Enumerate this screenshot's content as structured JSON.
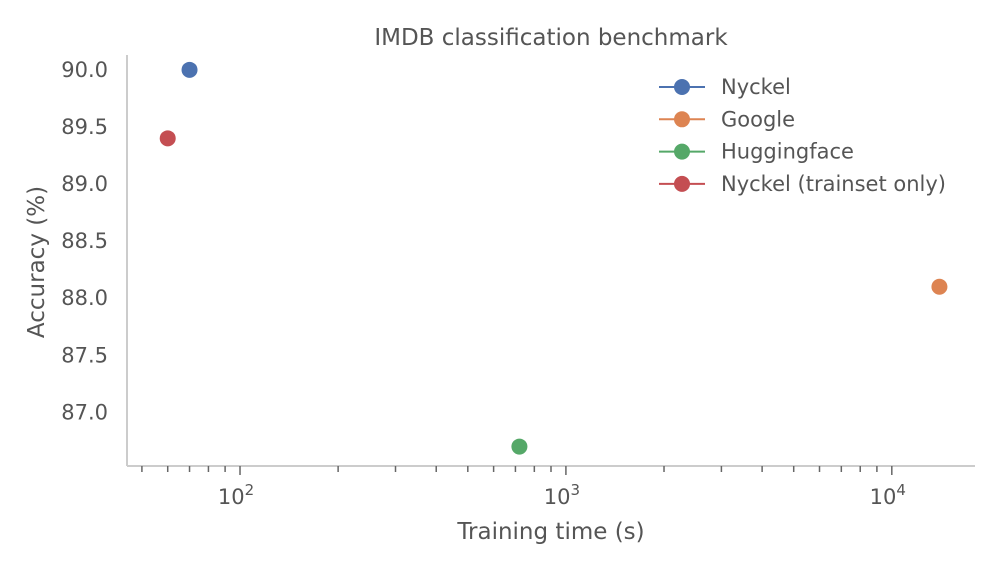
{
  "chart_data": {
    "type": "scatter",
    "title": "IMDB classification benchmark",
    "xlabel": "Training time (s)",
    "ylabel": "Accuracy (%)",
    "xscale": "log",
    "xlim": [
      45,
      18000
    ],
    "ylim": [
      86.53,
      90.13
    ],
    "grid": false,
    "legend_position": "top-right",
    "x_ticks": [
      {
        "value": 100,
        "base": "10",
        "exp": "2"
      },
      {
        "value": 1000,
        "base": "10",
        "exp": "3"
      },
      {
        "value": 10000,
        "base": "10",
        "exp": "4"
      }
    ],
    "y_ticks": [
      "87.0",
      "87.5",
      "88.0",
      "88.5",
      "89.0",
      "89.5",
      "90.0"
    ],
    "series": [
      {
        "name": "Nyckel",
        "color": "#4c72b0",
        "points": [
          {
            "x": 70,
            "y": 90.0
          }
        ]
      },
      {
        "name": "Google",
        "color": "#dd8452",
        "points": [
          {
            "x": 14000,
            "y": 88.1
          }
        ]
      },
      {
        "name": "Huggingface",
        "color": "#55a868",
        "points": [
          {
            "x": 720,
            "y": 86.7
          }
        ]
      },
      {
        "name": "Nyckel (trainset only)",
        "color": "#c44e52",
        "points": [
          {
            "x": 60,
            "y": 89.4
          }
        ]
      }
    ]
  }
}
